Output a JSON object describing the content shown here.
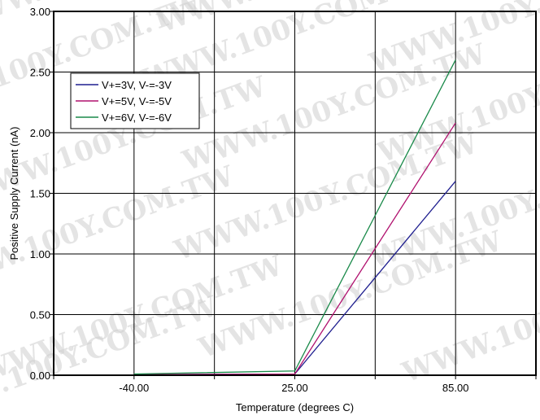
{
  "watermark": {
    "text": "WWW.100Y.COM.TW"
  },
  "chart_data": {
    "type": "line",
    "title": "",
    "xlabel": "Temperature (degrees C)",
    "ylabel": "Positive Supply Current (nA)",
    "x_tick_labels": [
      "-40.00",
      "25.00",
      "85.00"
    ],
    "y_tick_labels": [
      "0.00",
      "0.50",
      "1.00",
      "1.50",
      "2.00",
      "2.50",
      "3.00"
    ],
    "xlim": [
      -40,
      85
    ],
    "ylim": [
      0,
      3
    ],
    "grid": true,
    "legend_position": "top-left",
    "x": [
      -40,
      25,
      85
    ],
    "series": [
      {
        "name": "V+=3V, V-=-3V",
        "color": "#1f1f8f",
        "values": [
          0.005,
          0.01,
          1.6
        ]
      },
      {
        "name": "V+=5V, V-=-5V",
        "color": "#b0106e",
        "values": [
          0.005,
          0.01,
          2.08
        ]
      },
      {
        "name": "V+=6V, V-=-6V",
        "color": "#1a8a4a",
        "values": [
          0.01,
          0.035,
          2.6
        ]
      }
    ]
  }
}
